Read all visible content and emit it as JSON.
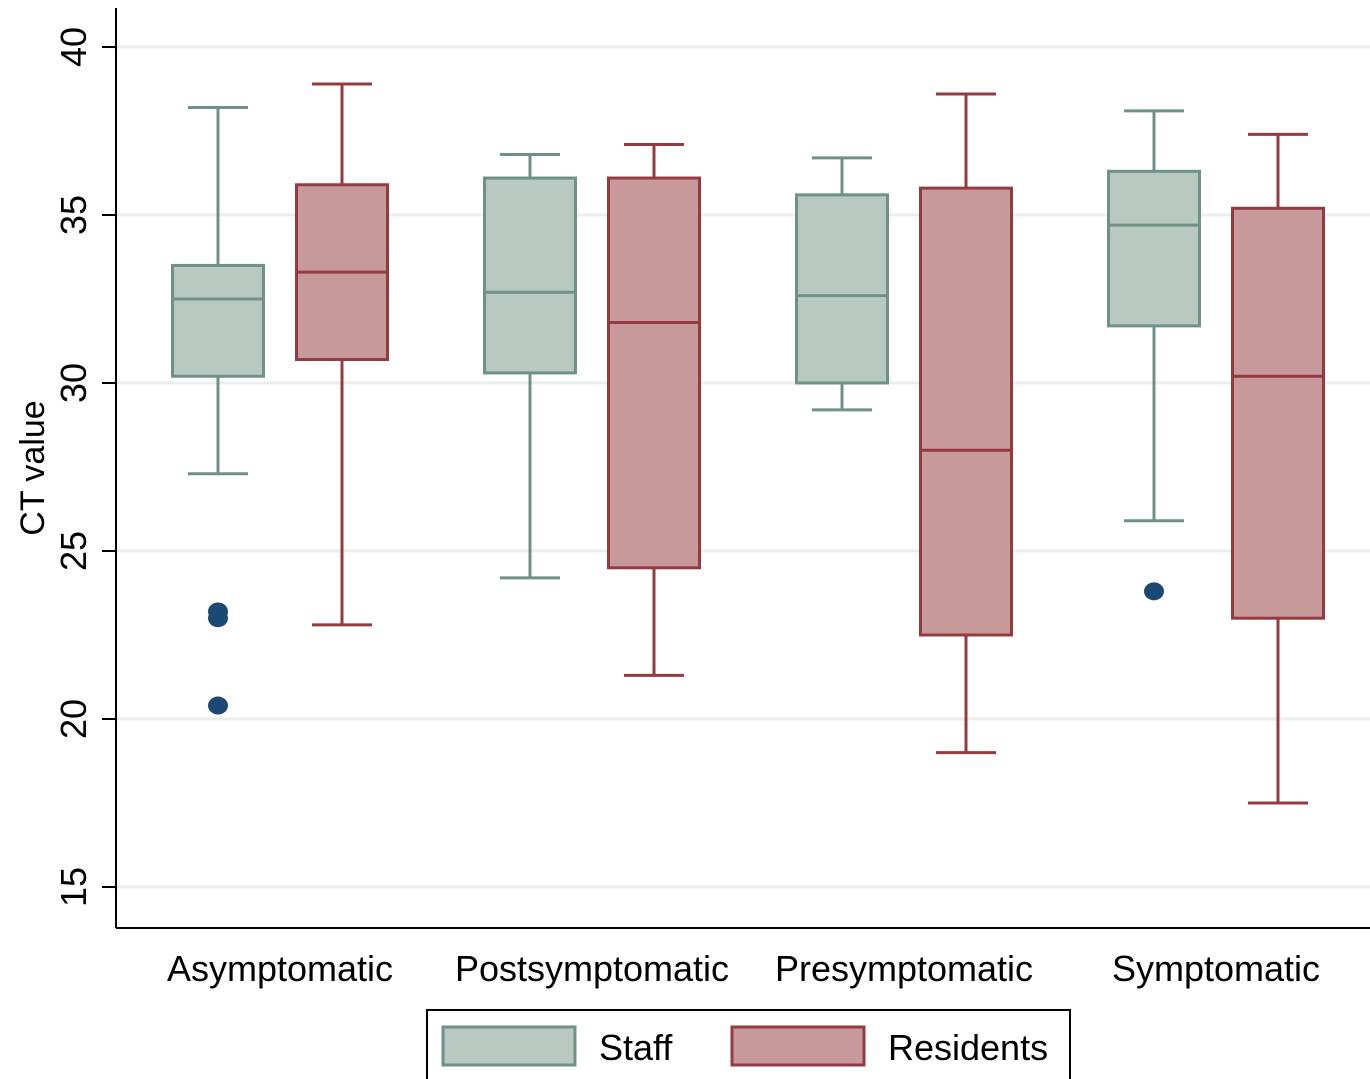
{
  "chart_data": {
    "type": "box",
    "ylabel": "CT value",
    "xlabel": "",
    "ylim": [
      15,
      40
    ],
    "yticks": [
      15,
      20,
      25,
      30,
      35,
      40
    ],
    "grid": true,
    "legend_position": "bottom",
    "categories": [
      "Asymptomatic",
      "Postsymptomatic",
      "Presymptomatic",
      "Symptomatic"
    ],
    "series": [
      {
        "name": "Staff",
        "color": "#b7c9c1",
        "stroke": "#6f9188",
        "boxes": [
          {
            "whisker_low": 27.3,
            "q1": 30.2,
            "median": 32.5,
            "q3": 33.5,
            "whisker_high": 38.2,
            "outliers": [
              23.2,
              23.0,
              20.4
            ]
          },
          {
            "whisker_low": 24.2,
            "q1": 30.3,
            "median": 32.7,
            "q3": 36.1,
            "whisker_high": 36.8,
            "outliers": []
          },
          {
            "whisker_low": 29.2,
            "q1": 30.0,
            "median": 32.6,
            "q3": 35.6,
            "whisker_high": 36.7,
            "outliers": []
          },
          {
            "whisker_low": 25.9,
            "q1": 31.7,
            "median": 34.7,
            "q3": 36.3,
            "whisker_high": 38.1,
            "outliers": [
              23.8
            ]
          }
        ]
      },
      {
        "name": "Residents",
        "color": "#c8999b",
        "stroke": "#943b40",
        "boxes": [
          {
            "whisker_low": 22.8,
            "q1": 30.7,
            "median": 33.3,
            "q3": 35.9,
            "whisker_high": 38.9,
            "outliers": []
          },
          {
            "whisker_low": 21.3,
            "q1": 24.5,
            "median": 31.8,
            "q3": 36.1,
            "whisker_high": 37.1,
            "outliers": []
          },
          {
            "whisker_low": 19.0,
            "q1": 22.5,
            "median": 28.0,
            "q3": 35.8,
            "whisker_high": 38.6,
            "outliers": []
          },
          {
            "whisker_low": 17.5,
            "q1": 23.0,
            "median": 30.2,
            "q3": 35.2,
            "whisker_high": 37.4,
            "outliers": []
          }
        ]
      }
    ],
    "outlier_color": "#1a4a73",
    "grid_color": "#e8efec"
  }
}
